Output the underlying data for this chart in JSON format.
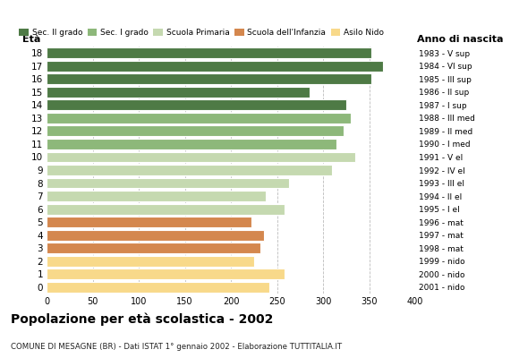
{
  "ages": [
    0,
    1,
    2,
    3,
    4,
    5,
    6,
    7,
    8,
    9,
    10,
    11,
    12,
    13,
    14,
    15,
    16,
    17,
    18
  ],
  "values": [
    242,
    258,
    225,
    232,
    236,
    222,
    258,
    238,
    263,
    310,
    335,
    315,
    322,
    330,
    325,
    285,
    352,
    365,
    352
  ],
  "anno_nascita": [
    "2001 - nido",
    "2000 - nido",
    "1999 - nido",
    "1998 - mat",
    "1997 - mat",
    "1996 - mat",
    "1995 - I el",
    "1994 - II el",
    "1993 - III el",
    "1992 - IV el",
    "1991 - V el",
    "1990 - I med",
    "1989 - II med",
    "1988 - III med",
    "1987 - I sup",
    "1986 - II sup",
    "1985 - III sup",
    "1984 - VI sup",
    "1983 - V sup"
  ],
  "bar_colors": [
    "#f8d98a",
    "#f8d98a",
    "#f8d98a",
    "#d4874e",
    "#d4874e",
    "#d4874e",
    "#c5d9b0",
    "#c5d9b0",
    "#c5d9b0",
    "#c5d9b0",
    "#c5d9b0",
    "#8db87a",
    "#8db87a",
    "#8db87a",
    "#4e7a45",
    "#4e7a45",
    "#4e7a45",
    "#4e7a45",
    "#4e7a45"
  ],
  "legend_labels": [
    "Sec. II grado",
    "Sec. I grado",
    "Scuola Primaria",
    "Scuola dell'Infanzia",
    "Asilo Nido"
  ],
  "legend_colors": [
    "#4e7a45",
    "#8db87a",
    "#c5d9b0",
    "#d4874e",
    "#f8d98a"
  ],
  "title": "Popolazione per età scolastica - 2002",
  "subtitle": "COMUNE DI MESAGNE (BR) - Dati ISTAT 1° gennaio 2002 - Elaborazione TUTTITALIA.IT",
  "xlabel_eta": "Età",
  "xlabel_anno": "Anno di nascita",
  "xlim": [
    0,
    400
  ],
  "xticks": [
    0,
    50,
    100,
    150,
    200,
    250,
    300,
    350,
    400
  ],
  "grid_color": "#bbbbbb",
  "bg_color": "#ffffff",
  "bar_edge_color": "#ffffff",
  "bar_height": 0.82
}
